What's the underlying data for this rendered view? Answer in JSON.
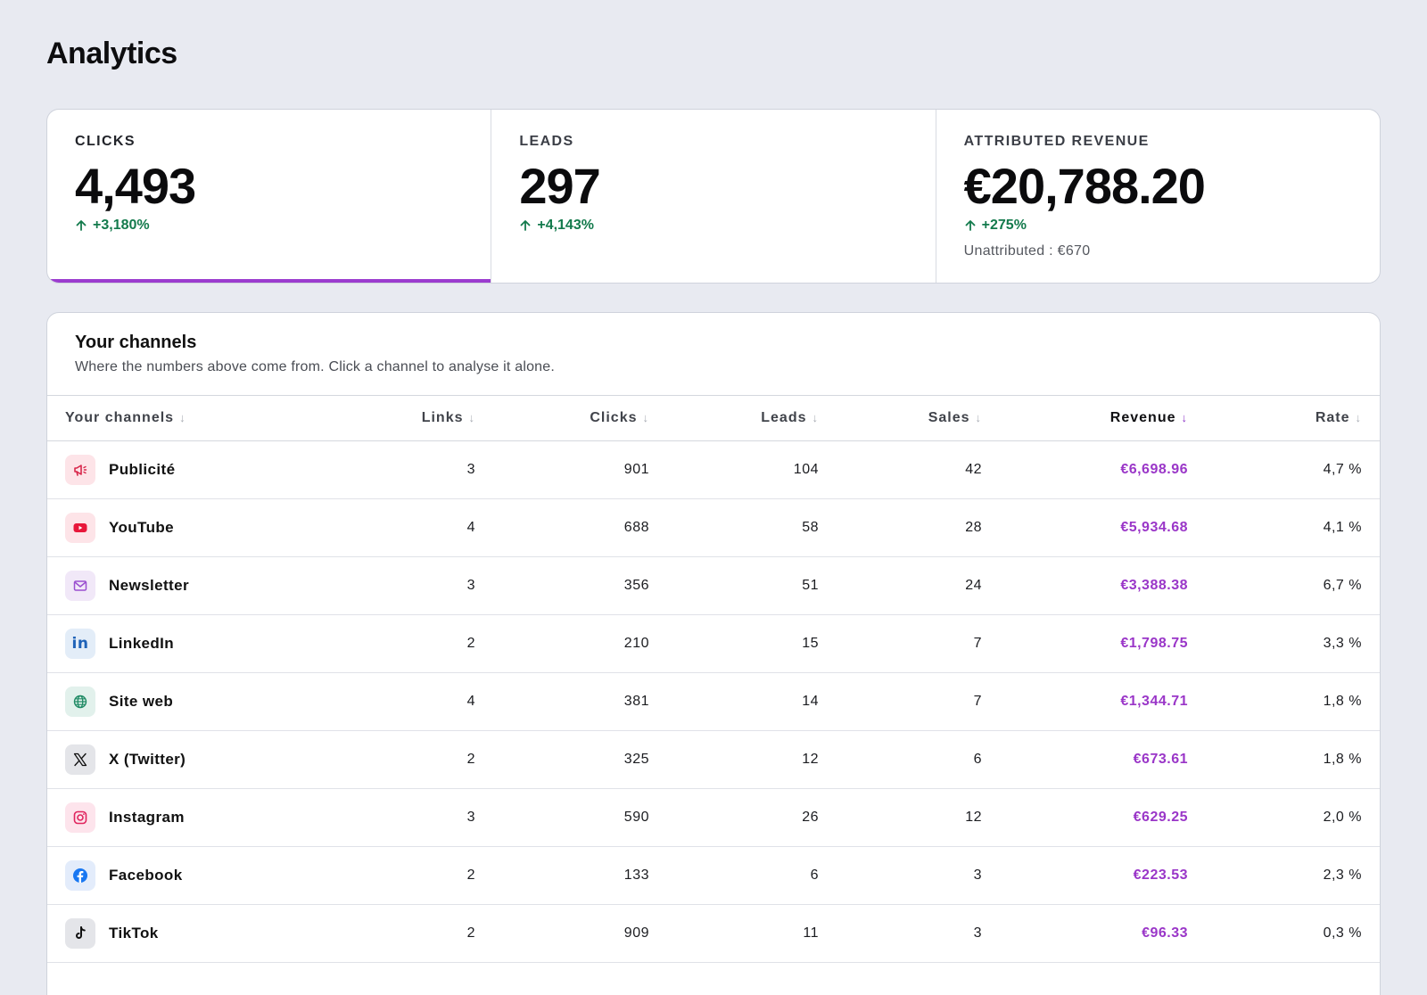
{
  "page": {
    "title": "Analytics"
  },
  "kpis": {
    "clicks": {
      "label": "CLICKS",
      "value": "4,493",
      "delta": "+3,180%"
    },
    "leads": {
      "label": "LEADS",
      "value": "297",
      "delta": "+4,143%"
    },
    "revenue": {
      "label": "ATTRIBUTED REVENUE",
      "value": "€20,788.20",
      "delta": "+275%",
      "sub": "Unattributed : €670"
    }
  },
  "channels": {
    "title": "Your channels",
    "subtitle": "Where the numbers above come from. Click a channel to analyse it alone.",
    "columns": {
      "name": "Your channels",
      "links": "Links",
      "clicks": "Clicks",
      "leads": "Leads",
      "sales": "Sales",
      "revenue": "Revenue",
      "rate": "Rate"
    },
    "sorted_by": "revenue",
    "rows": [
      {
        "name": "Publicité",
        "icon": "megaphone-icon",
        "links": "3",
        "clicks": "901",
        "leads": "104",
        "sales": "42",
        "revenue": "€6,698.96",
        "rate": "4,7 %"
      },
      {
        "name": "YouTube",
        "icon": "youtube-icon",
        "links": "4",
        "clicks": "688",
        "leads": "58",
        "sales": "28",
        "revenue": "€5,934.68",
        "rate": "4,1 %"
      },
      {
        "name": "Newsletter",
        "icon": "mail-icon",
        "links": "3",
        "clicks": "356",
        "leads": "51",
        "sales": "24",
        "revenue": "€3,388.38",
        "rate": "6,7 %"
      },
      {
        "name": "LinkedIn",
        "icon": "linkedin-icon",
        "links": "2",
        "clicks": "210",
        "leads": "15",
        "sales": "7",
        "revenue": "€1,798.75",
        "rate": "3,3 %"
      },
      {
        "name": "Site web",
        "icon": "globe-icon",
        "links": "4",
        "clicks": "381",
        "leads": "14",
        "sales": "7",
        "revenue": "€1,344.71",
        "rate": "1,8 %"
      },
      {
        "name": "X (Twitter)",
        "icon": "x-twitter-icon",
        "links": "2",
        "clicks": "325",
        "leads": "12",
        "sales": "6",
        "revenue": "€673.61",
        "rate": "1,8 %"
      },
      {
        "name": "Instagram",
        "icon": "instagram-icon",
        "links": "3",
        "clicks": "590",
        "leads": "26",
        "sales": "12",
        "revenue": "€629.25",
        "rate": "2,0 %"
      },
      {
        "name": "Facebook",
        "icon": "facebook-icon",
        "links": "2",
        "clicks": "133",
        "leads": "6",
        "sales": "3",
        "revenue": "€223.53",
        "rate": "2,3 %"
      },
      {
        "name": "TikTok",
        "icon": "tiktok-icon",
        "links": "2",
        "clicks": "909",
        "leads": "11",
        "sales": "3",
        "revenue": "€96.33",
        "rate": "0,3 %"
      }
    ]
  },
  "colors": {
    "accent": "#9b3ccf",
    "positive": "#137a4c",
    "revenue": "#9a36c8",
    "background": "#e8eaf1"
  }
}
